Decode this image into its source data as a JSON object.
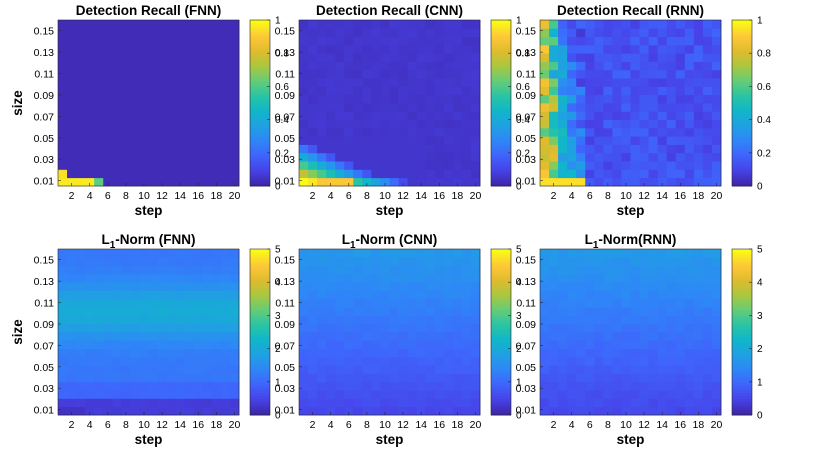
{
  "figure": {
    "description_free": true
  },
  "colormap": [
    "#3e26a8",
    "#4743e9",
    "#3f64fc",
    "#2e87f7",
    "#1fa1e1",
    "#10b6c9",
    "#2ac4a4",
    "#64cc78",
    "#a9c740",
    "#dfbb2d",
    "#fdc838",
    "#f9fb15"
  ],
  "chart_data": [
    {
      "type": "heatmap",
      "title": "Detection Recall (FNN)",
      "title_main": "Detection Recall (FNN)",
      "title_sub": "",
      "xlabel": "step",
      "ylabel": "size",
      "x_ticks": [
        "2",
        "4",
        "6",
        "8",
        "10",
        "12",
        "14",
        "16",
        "18",
        "20"
      ],
      "y_ticks": [
        "0.15",
        "0.13",
        "0.11",
        "0.09",
        "0.07",
        "0.05",
        "0.03",
        "0.01"
      ],
      "colorbar": {
        "ticks": [
          "1",
          "0.8",
          "0.6",
          "0.4",
          "0.2",
          "0"
        ],
        "range": [
          0,
          1
        ]
      },
      "x_range": [
        1,
        20
      ],
      "y_range": [
        0.005,
        0.16
      ],
      "metric": "recall",
      "model": "FNN"
    },
    {
      "type": "heatmap",
      "title": "Detection Recall (CNN)",
      "title_main": "Detection Recall (CNN)",
      "title_sub": "",
      "xlabel": "step",
      "ylabel": "",
      "x_ticks": [
        "2",
        "4",
        "6",
        "8",
        "10",
        "12",
        "14",
        "16",
        "18",
        "20"
      ],
      "y_ticks": [
        "0.15",
        "0.13",
        "0.11",
        "0.09",
        "0.07",
        "0.05",
        "0.03",
        "0.01"
      ],
      "colorbar": {
        "ticks": [
          "1",
          "0.8",
          "0.6",
          "0.4",
          "0.2",
          "0"
        ],
        "range": [
          0,
          1
        ]
      },
      "x_range": [
        1,
        20
      ],
      "y_range": [
        0.005,
        0.16
      ],
      "metric": "recall",
      "model": "CNN"
    },
    {
      "type": "heatmap",
      "title": "Detection Recall (RNN)",
      "title_main": "Detection Recall (RNN)",
      "title_sub": "",
      "xlabel": "step",
      "ylabel": "",
      "x_ticks": [
        "2",
        "4",
        "6",
        "8",
        "10",
        "12",
        "14",
        "16",
        "18",
        "20"
      ],
      "y_ticks": [
        "0.15",
        "0.13",
        "0.11",
        "0.09",
        "0.07",
        "0.05",
        "0.03",
        "0.01"
      ],
      "colorbar": {
        "ticks": [
          "1",
          "0.8",
          "0.6",
          "0.4",
          "0.2",
          "0"
        ],
        "range": [
          0,
          1
        ]
      },
      "x_range": [
        1,
        20
      ],
      "y_range": [
        0.005,
        0.16
      ],
      "metric": "recall",
      "model": "RNN"
    },
    {
      "type": "heatmap",
      "title": "L1-Norm (FNN)",
      "title_main": "L",
      "title_sub": "1",
      "title_rest": "-Norm (FNN)",
      "xlabel": "step",
      "ylabel": "size",
      "x_ticks": [
        "2",
        "4",
        "6",
        "8",
        "10",
        "12",
        "14",
        "16",
        "18",
        "20"
      ],
      "y_ticks": [
        "0.15",
        "0.13",
        "0.11",
        "0.09",
        "0.07",
        "0.05",
        "0.03",
        "0.01"
      ],
      "colorbar": {
        "ticks": [
          "5",
          "4",
          "3",
          "2",
          "1",
          "0"
        ],
        "range": [
          0,
          5
        ]
      },
      "x_range": [
        1,
        20
      ],
      "y_range": [
        0.005,
        0.16
      ],
      "metric": "l1",
      "model": "FNN"
    },
    {
      "type": "heatmap",
      "title": "L1-Norm (CNN)",
      "title_main": "L",
      "title_sub": "1",
      "title_rest": "-Norm (CNN)",
      "xlabel": "step",
      "ylabel": "",
      "x_ticks": [
        "2",
        "4",
        "6",
        "8",
        "10",
        "12",
        "14",
        "16",
        "18",
        "20"
      ],
      "y_ticks": [
        "0.15",
        "0.13",
        "0.11",
        "0.09",
        "0.07",
        "0.05",
        "0.03",
        "0.01"
      ],
      "colorbar": {
        "ticks": [
          "5",
          "4",
          "3",
          "2",
          "1",
          "0"
        ],
        "range": [
          0,
          5
        ]
      },
      "x_range": [
        1,
        20
      ],
      "y_range": [
        0.005,
        0.16
      ],
      "metric": "l1",
      "model": "CNN"
    },
    {
      "type": "heatmap",
      "title": "L1-Norm(RNN)",
      "title_main": "L",
      "title_sub": "1",
      "title_rest": "-Norm(RNN)",
      "xlabel": "step",
      "ylabel": "",
      "x_ticks": [
        "2",
        "4",
        "6",
        "8",
        "10",
        "12",
        "14",
        "16",
        "18",
        "20"
      ],
      "y_ticks": [
        "0.15",
        "0.13",
        "0.11",
        "0.09",
        "0.07",
        "0.05",
        "0.03",
        "0.01"
      ],
      "colorbar": {
        "ticks": [
          "5",
          "4",
          "3",
          "2",
          "1",
          "0"
        ],
        "range": [
          0,
          5
        ]
      },
      "x_range": [
        1,
        20
      ],
      "y_range": [
        0.005,
        0.16
      ],
      "metric": "l1",
      "model": "RNN"
    }
  ]
}
